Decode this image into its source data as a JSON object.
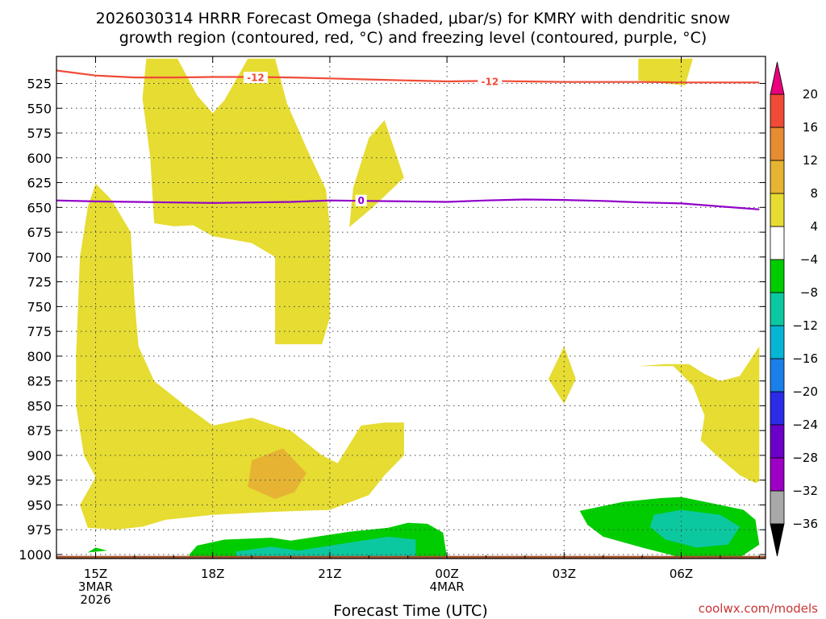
{
  "title_line1": "2026030314 HRRR Forecast Omega (shaded, μbar/s) for KMRY with dendritic snow",
  "title_line2": "growth region (contoured, red, °C) and freezing level (contoured, purple, °C)",
  "credit": "coolwx.com/models",
  "chart_data": {
    "type": "heatmap",
    "title": "2026030314 HRRR Forecast Omega (shaded, μbar/s) for KMRY with dendritic snow growth region (contoured, red, °C) and freezing level (contoured, purple, °C)",
    "xlabel": "Forecast Time (UTC)",
    "ylabel": "",
    "x_range_hours": [
      14.0,
      32.0
    ],
    "y_range_hPa": [
      1003,
      500
    ],
    "y_ticks": [
      525,
      550,
      575,
      600,
      625,
      650,
      675,
      700,
      725,
      750,
      775,
      800,
      825,
      850,
      875,
      900,
      925,
      950,
      975,
      1000
    ],
    "x_ticks": [
      {
        "hour": 15,
        "labels": [
          "15Z",
          "3MAR",
          "2026"
        ]
      },
      {
        "hour": 18,
        "labels": [
          "18Z"
        ]
      },
      {
        "hour": 21,
        "labels": [
          "21Z"
        ]
      },
      {
        "hour": 24,
        "labels": [
          "00Z",
          "4MAR"
        ]
      },
      {
        "hour": 27,
        "labels": [
          "03Z"
        ]
      },
      {
        "hour": 30,
        "labels": [
          "06Z"
        ]
      }
    ],
    "grid": true,
    "colorbar": {
      "levels": [
        -36,
        -32,
        -28,
        -24,
        -20,
        -16,
        -12,
        -8,
        -4,
        4,
        8,
        12,
        16,
        20
      ],
      "colors": [
        "#a8a8a8",
        "#9c00c4",
        "#6b00c9",
        "#2b2be8",
        "#1a7fe8",
        "#06b4d6",
        "#0cc8a0",
        "#00cc00",
        "#ffffff",
        "#e6dc32",
        "#e6b432",
        "#e68c32",
        "#f04b37"
      ],
      "under_color": "#000000",
      "over_color": "#e8007d"
    },
    "shaded_regions": [
      {
        "level_min": 4,
        "level_max": 8,
        "color": "#e6dc32",
        "polygon": [
          [
            16.3,
            500
          ],
          [
            17.1,
            500
          ],
          [
            17.6,
            537
          ],
          [
            18.0,
            555
          ],
          [
            18.3,
            542
          ],
          [
            18.9,
            500
          ],
          [
            19.6,
            500
          ],
          [
            19.9,
            545
          ],
          [
            20.4,
            590
          ],
          [
            20.9,
            632
          ],
          [
            21.0,
            669
          ],
          [
            21.0,
            761
          ],
          [
            20.8,
            788
          ],
          [
            19.6,
            788
          ],
          [
            19.6,
            700
          ],
          [
            19.0,
            686
          ],
          [
            18.0,
            679
          ],
          [
            17.5,
            668
          ],
          [
            17.0,
            669
          ],
          [
            16.5,
            666
          ],
          [
            16.4,
            600
          ],
          [
            16.2,
            540
          ],
          [
            16.3,
            500
          ]
        ]
      },
      {
        "level_min": 4,
        "level_max": 8,
        "color": "#e6dc32",
        "polygon": [
          [
            15.0,
            626
          ],
          [
            15.4,
            642
          ],
          [
            15.9,
            675
          ],
          [
            16.0,
            745
          ],
          [
            16.1,
            790
          ],
          [
            16.5,
            825
          ],
          [
            17.3,
            850
          ],
          [
            18.0,
            870
          ],
          [
            19.0,
            862
          ],
          [
            20.0,
            875
          ],
          [
            20.8,
            900
          ],
          [
            21.2,
            908
          ],
          [
            21.8,
            870
          ],
          [
            22.4,
            867
          ],
          [
            22.9,
            867
          ],
          [
            22.9,
            900
          ],
          [
            22.4,
            920
          ],
          [
            22.0,
            940
          ],
          [
            21.0,
            955
          ],
          [
            19.5,
            957
          ],
          [
            18.0,
            960
          ],
          [
            16.8,
            965
          ],
          [
            16.2,
            972
          ],
          [
            15.5,
            975
          ],
          [
            14.8,
            973
          ],
          [
            14.6,
            950
          ],
          [
            15.0,
            922
          ],
          [
            14.7,
            900
          ],
          [
            14.5,
            850
          ],
          [
            14.5,
            800
          ],
          [
            14.6,
            700
          ],
          [
            14.8,
            650
          ],
          [
            15.0,
            626
          ]
        ]
      },
      {
        "level_min": 4,
        "level_max": 8,
        "color": "#e6dc32",
        "polygon": [
          [
            21.5,
            670
          ],
          [
            21.6,
            630
          ],
          [
            22.0,
            580
          ],
          [
            22.4,
            562
          ],
          [
            22.9,
            620
          ],
          [
            22.1,
            650
          ],
          [
            21.5,
            670
          ]
        ]
      },
      {
        "level_min": 4,
        "level_max": 8,
        "color": "#e6dc32",
        "polygon": [
          [
            27.0,
            790
          ],
          [
            26.6,
            823
          ],
          [
            27.0,
            848
          ],
          [
            27.3,
            823
          ],
          [
            27.0,
            790
          ]
        ]
      },
      {
        "level_min": 4,
        "level_max": 8,
        "color": "#e6dc32",
        "polygon": [
          [
            28.9,
            500
          ],
          [
            30.3,
            500
          ],
          [
            30.1,
            527
          ],
          [
            29.6,
            525
          ],
          [
            28.9,
            522
          ],
          [
            28.9,
            500
          ]
        ]
      },
      {
        "level_min": 4,
        "level_max": 8,
        "color": "#e6dc32",
        "polygon": [
          [
            28.9,
            810
          ],
          [
            29.8,
            810
          ],
          [
            30.3,
            830
          ],
          [
            30.6,
            860
          ],
          [
            30.5,
            885
          ],
          [
            30.9,
            900
          ],
          [
            31.2,
            910
          ],
          [
            31.5,
            920
          ],
          [
            31.9,
            928
          ],
          [
            32.0,
            926
          ],
          [
            32.0,
            790
          ],
          [
            31.5,
            820
          ],
          [
            31.0,
            825
          ],
          [
            30.6,
            818
          ],
          [
            30.2,
            808
          ],
          [
            29.6,
            808
          ],
          [
            28.9,
            810
          ]
        ]
      },
      {
        "level_min": 8,
        "level_max": 12,
        "color": "#e6b432",
        "polygon": [
          [
            19.0,
            905
          ],
          [
            19.8,
            893
          ],
          [
            20.4,
            918
          ],
          [
            20.1,
            937
          ],
          [
            19.6,
            944
          ],
          [
            18.9,
            932
          ],
          [
            19.0,
            905
          ]
        ]
      },
      {
        "level_min": -8,
        "level_max": -4,
        "color": "#00cc00",
        "polygon": [
          [
            15.0,
            993
          ],
          [
            15.3,
            996
          ],
          [
            14.8,
            998
          ],
          [
            15.0,
            993
          ]
        ]
      },
      {
        "level_min": -8,
        "level_max": -4,
        "color": "#00cc00",
        "polygon": [
          [
            17.4,
            1000
          ],
          [
            17.6,
            991
          ],
          [
            18.3,
            985
          ],
          [
            19.5,
            983
          ],
          [
            20.0,
            986
          ],
          [
            21.5,
            977
          ],
          [
            22.5,
            973
          ],
          [
            23.0,
            968
          ],
          [
            23.5,
            969
          ],
          [
            23.9,
            978
          ],
          [
            24.0,
            1003
          ],
          [
            17.4,
            1003
          ],
          [
            17.4,
            1000
          ]
        ]
      },
      {
        "level_min": -8,
        "level_max": -4,
        "color": "#00cc00",
        "polygon": [
          [
            27.4,
            956
          ],
          [
            28.5,
            947
          ],
          [
            29.5,
            943
          ],
          [
            30.0,
            942
          ],
          [
            31.0,
            950
          ],
          [
            31.6,
            955
          ],
          [
            31.9,
            965
          ],
          [
            32.0,
            990
          ],
          [
            31.5,
            1003
          ],
          [
            30.0,
            1003
          ],
          [
            29.0,
            993
          ],
          [
            28.0,
            982
          ],
          [
            27.6,
            970
          ],
          [
            27.4,
            956
          ]
        ]
      },
      {
        "level_min": -12,
        "level_max": -8,
        "color": "#0cc8a0",
        "polygon": [
          [
            18.6,
            997
          ],
          [
            19.5,
            992
          ],
          [
            20.2,
            996
          ],
          [
            21.5,
            988
          ],
          [
            22.5,
            982
          ],
          [
            23.2,
            985
          ],
          [
            23.2,
            1003
          ],
          [
            18.6,
            1003
          ],
          [
            18.6,
            997
          ]
        ]
      },
      {
        "level_min": -12,
        "level_max": -8,
        "color": "#0cc8a0",
        "polygon": [
          [
            29.3,
            960
          ],
          [
            30.0,
            955
          ],
          [
            31.0,
            960
          ],
          [
            31.5,
            972
          ],
          [
            31.2,
            990
          ],
          [
            30.4,
            993
          ],
          [
            29.6,
            985
          ],
          [
            29.2,
            972
          ],
          [
            29.3,
            960
          ]
        ]
      }
    ],
    "ground_pressure_hPa": 1003,
    "contours": [
      {
        "name": "dendritic snow growth region",
        "value": -12,
        "label": "-12",
        "color": "#f04b37",
        "points": [
          [
            14.0,
            512
          ],
          [
            15.0,
            517
          ],
          [
            16.0,
            519
          ],
          [
            17.0,
            519
          ],
          [
            18.0,
            518.5
          ],
          [
            19.0,
            518.5
          ],
          [
            20.0,
            519
          ],
          [
            21.0,
            520
          ],
          [
            22.0,
            521
          ],
          [
            23.0,
            522
          ],
          [
            24.0,
            523
          ],
          [
            25.0,
            522.5
          ],
          [
            26.0,
            523
          ],
          [
            27.0,
            523.5
          ],
          [
            28.0,
            523.5
          ],
          [
            29.0,
            523.5
          ],
          [
            30.0,
            524
          ],
          [
            31.0,
            524
          ],
          [
            32.0,
            524
          ]
        ],
        "label_positions": [
          [
            19.1,
            519
          ],
          [
            25.1,
            523
          ]
        ]
      },
      {
        "name": "freezing level",
        "value": 0,
        "label": "0",
        "color": "#9100c8",
        "points": [
          [
            14.0,
            643
          ],
          [
            15.0,
            644
          ],
          [
            16.0,
            644.5
          ],
          [
            17.0,
            645
          ],
          [
            18.0,
            645.5
          ],
          [
            19.0,
            645
          ],
          [
            20.0,
            644.5
          ],
          [
            21.0,
            643
          ],
          [
            22.0,
            643.5
          ],
          [
            23.0,
            644
          ],
          [
            24.0,
            644.5
          ],
          [
            25.0,
            643
          ],
          [
            26.0,
            642
          ],
          [
            27.0,
            642.5
          ],
          [
            28.0,
            643.5
          ],
          [
            29.0,
            645
          ],
          [
            30.0,
            646
          ],
          [
            31.0,
            649
          ],
          [
            32.0,
            652
          ]
        ],
        "label_positions": [
          [
            21.8,
            643
          ]
        ]
      }
    ]
  }
}
